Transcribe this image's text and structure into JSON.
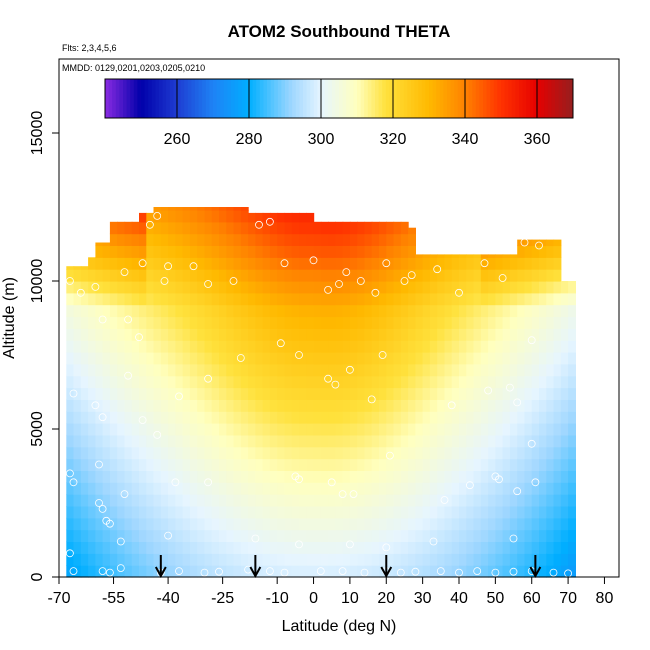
{
  "chart_data": {
    "type": "heatmap",
    "title": "ATOM2 Southbound THETA",
    "subtitle_flights": "Flts: 2,3,4,5,6",
    "subtitle_dates": "MMDD: 0129,0201,0203,0205,0210",
    "xlabel": "Latitude (deg N)",
    "ylabel": "Altitude (m)",
    "xlim": [
      -70,
      84
    ],
    "ylim": [
      0,
      17500
    ],
    "x_ticks": [
      -70,
      -55,
      -40,
      -25,
      -10,
      0,
      10,
      20,
      30,
      40,
      50,
      60,
      70,
      80
    ],
    "x_tick_labels": [
      "-70",
      "-55",
      "-40",
      "-25",
      "-10",
      "0",
      "10",
      "20",
      "30",
      "40",
      "50",
      "60",
      "70",
      "80"
    ],
    "y_ticks": [
      0,
      5000,
      10000,
      15000
    ],
    "y_tick_labels": [
      "0",
      "5000",
      "10000",
      "15000"
    ],
    "colorbar": {
      "min": 240,
      "max": 370,
      "ticks": [
        260,
        280,
        300,
        320,
        340,
        360
      ],
      "tick_labels": [
        "260",
        "280",
        "300",
        "320",
        "340",
        "360"
      ]
    },
    "arrows_lat": [
      -42,
      -16,
      20,
      61
    ],
    "observation_points": [
      [
        -67,
        10000
      ],
      [
        -64,
        9600
      ],
      [
        -60,
        9800
      ],
      [
        -52,
        10300
      ],
      [
        -47,
        10600
      ],
      [
        -45,
        11900
      ],
      [
        -43,
        12200
      ],
      [
        -41,
        10000
      ],
      [
        -40,
        10500
      ],
      [
        -33,
        10500
      ],
      [
        -29,
        9900
      ],
      [
        -22,
        10000
      ],
      [
        -15,
        11900
      ],
      [
        -12,
        12000
      ],
      [
        -8,
        10600
      ],
      [
        0,
        10700
      ],
      [
        4,
        9700
      ],
      [
        7,
        9900
      ],
      [
        9,
        10300
      ],
      [
        13,
        10000
      ],
      [
        17,
        9600
      ],
      [
        20,
        10600
      ],
      [
        25,
        10000
      ],
      [
        27,
        10200
      ],
      [
        34,
        10400
      ],
      [
        40,
        9600
      ],
      [
        47,
        10600
      ],
      [
        52,
        10100
      ],
      [
        58,
        11300
      ],
      [
        62,
        11200
      ],
      [
        -58,
        8700
      ],
      [
        -51,
        8700
      ],
      [
        -48,
        8100
      ],
      [
        -29,
        6700
      ],
      [
        -20,
        7400
      ],
      [
        -9,
        7900
      ],
      [
        -4,
        7500
      ],
      [
        4,
        6700
      ],
      [
        6,
        6500
      ],
      [
        10,
        7000
      ],
      [
        19,
        7500
      ],
      [
        16,
        6000
      ],
      [
        38,
        5800
      ],
      [
        48,
        6300
      ],
      [
        54,
        6400
      ],
      [
        56,
        5900
      ],
      [
        60,
        8000
      ],
      [
        -66,
        6200
      ],
      [
        -60,
        5800
      ],
      [
        -58,
        5400
      ],
      [
        -51,
        6800
      ],
      [
        -47,
        5300
      ],
      [
        -43,
        4800
      ],
      [
        -37,
        6100
      ],
      [
        -59,
        3800
      ],
      [
        -67,
        3500
      ],
      [
        -66,
        3200
      ],
      [
        -52,
        2800
      ],
      [
        -38,
        3200
      ],
      [
        -29,
        3200
      ],
      [
        -5,
        3400
      ],
      [
        -4,
        3300
      ],
      [
        5,
        3200
      ],
      [
        8,
        2800
      ],
      [
        11,
        2800
      ],
      [
        21,
        4100
      ],
      [
        36,
        2600
      ],
      [
        43,
        3100
      ],
      [
        50,
        3400
      ],
      [
        51,
        3300
      ],
      [
        56,
        2900
      ],
      [
        60,
        4500
      ],
      [
        61,
        3200
      ],
      [
        -59,
        2500
      ],
      [
        -58,
        2300
      ],
      [
        -57,
        1900
      ],
      [
        -56,
        1800
      ],
      [
        -53,
        1200
      ],
      [
        -40,
        1400
      ],
      [
        -16,
        1300
      ],
      [
        -4,
        1100
      ],
      [
        10,
        1100
      ],
      [
        20,
        1000
      ],
      [
        33,
        1200
      ],
      [
        55,
        1300
      ],
      [
        -67,
        800
      ],
      [
        -66,
        200
      ],
      [
        -58,
        200
      ],
      [
        -56,
        150
      ],
      [
        -53,
        300
      ],
      [
        -42,
        150
      ],
      [
        -37,
        200
      ],
      [
        -30,
        150
      ],
      [
        -26,
        180
      ],
      [
        -18,
        250
      ],
      [
        -12,
        200
      ],
      [
        -8,
        150
      ],
      [
        2,
        200
      ],
      [
        8,
        200
      ],
      [
        14,
        150
      ],
      [
        20,
        200
      ],
      [
        24,
        150
      ],
      [
        28,
        180
      ],
      [
        35,
        200
      ],
      [
        40,
        150
      ],
      [
        45,
        200
      ],
      [
        50,
        150
      ],
      [
        55,
        180
      ],
      [
        60,
        200
      ],
      [
        66,
        150
      ],
      [
        70,
        120
      ]
    ]
  }
}
